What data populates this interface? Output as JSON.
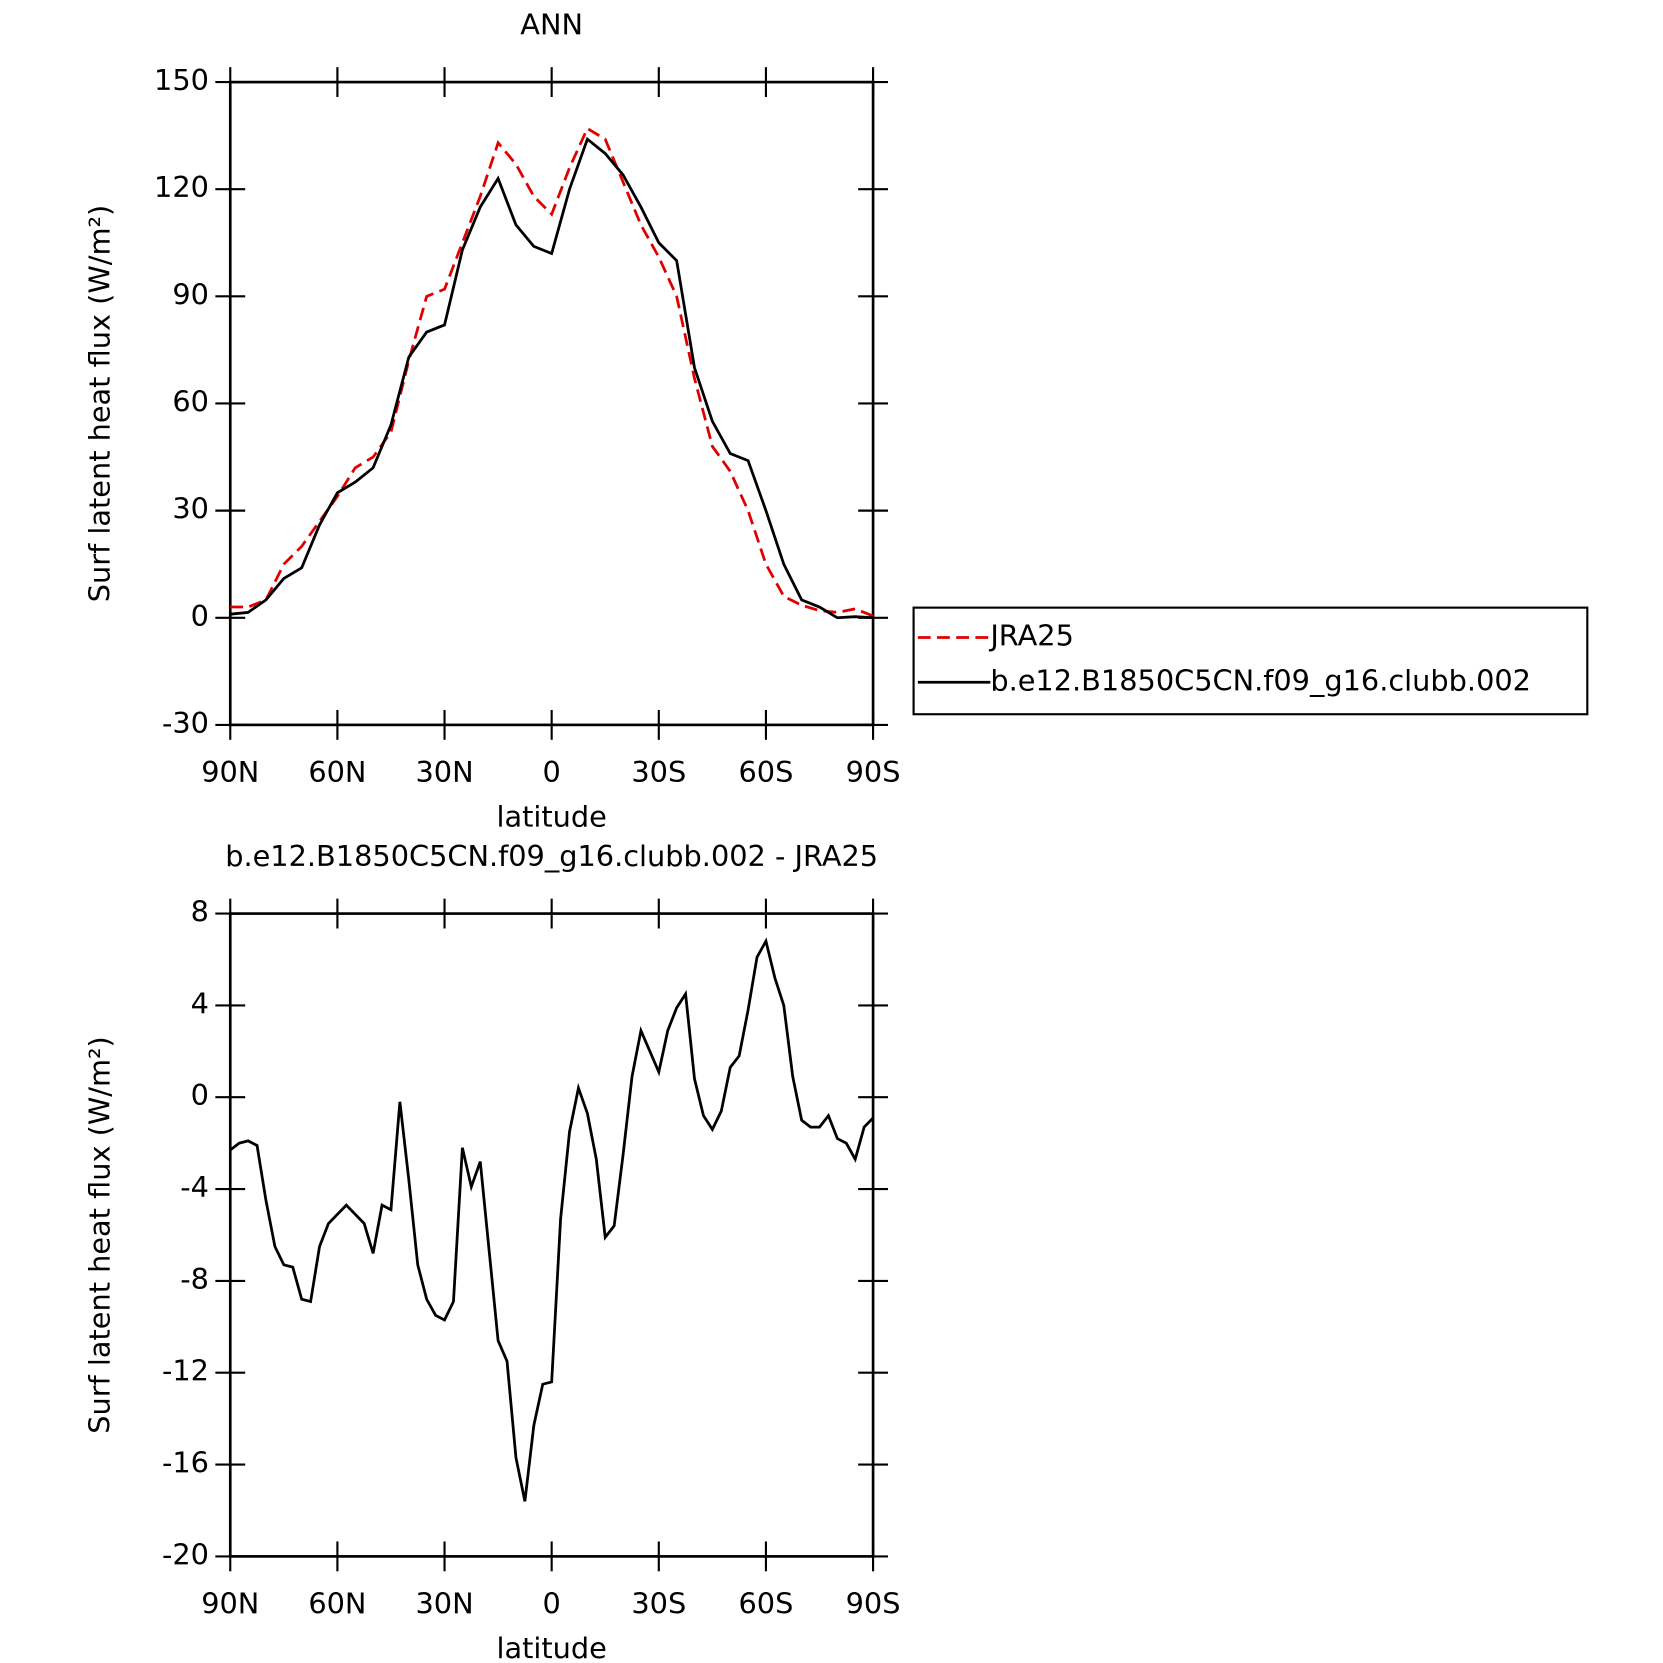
{
  "chart_data": [
    {
      "type": "line",
      "title": "ANN",
      "xlabel": "latitude",
      "ylabel": "Surf latent heat flux (W/m²)",
      "x": [
        90,
        85,
        80,
        75,
        70,
        65,
        60,
        55,
        50,
        45,
        40,
        35,
        30,
        25,
        20,
        15,
        10,
        5,
        0,
        -5,
        -10,
        -15,
        -20,
        -25,
        -30,
        -35,
        -40,
        -45,
        -50,
        -55,
        -60,
        -65,
        -70,
        -75,
        -80,
        -85,
        -90
      ],
      "series": [
        {
          "name": "JRA25",
          "color": "#e00000",
          "style": "dashed",
          "values": [
            3,
            3,
            5,
            15,
            20,
            27,
            34,
            42,
            45,
            52,
            72,
            90,
            92,
            105,
            118,
            133,
            127,
            118,
            113,
            126,
            137,
            134,
            122,
            110,
            101,
            90,
            67,
            48,
            41,
            30,
            15,
            6,
            3.5,
            2,
            1.5,
            2.5,
            0.5
          ]
        },
        {
          "name": "b.e12.B1850C5CN.f09_g16.clubb.002",
          "color": "#000000",
          "style": "solid",
          "values": [
            1,
            1.5,
            5,
            11,
            14,
            26,
            35,
            38,
            42,
            54,
            73,
            80,
            82,
            103,
            115,
            123,
            110,
            104,
            102,
            120,
            134,
            130,
            124,
            115,
            105,
            100,
            70,
            55,
            46,
            44,
            30,
            15,
            5,
            3,
            0,
            0.3,
            0
          ]
        }
      ],
      "xlim": [
        90,
        -90
      ],
      "xticks": [
        {
          "value": 90,
          "label": "90N"
        },
        {
          "value": 60,
          "label": "60N"
        },
        {
          "value": 30,
          "label": "30N"
        },
        0,
        {
          "value": -30,
          "label": "30S"
        },
        {
          "value": -60,
          "label": "60S"
        },
        {
          "value": -90,
          "label": "90S"
        }
      ],
      "ylim": [
        -30,
        150
      ],
      "yticks": [
        -30,
        0,
        30,
        60,
        90,
        120,
        150
      ],
      "legend": "right"
    },
    {
      "type": "line",
      "title": "b.e12.B1850C5CN.f09_g16.clubb.002 - JRA25",
      "xlabel": "latitude",
      "ylabel": "Surf latent heat flux (W/m²)",
      "x": [
        90,
        87.5,
        85,
        82.5,
        80,
        77.5,
        75,
        72.5,
        70,
        67.5,
        65,
        62.5,
        60,
        57.5,
        55,
        52.5,
        50,
        47.5,
        45,
        42.5,
        40,
        37.5,
        35,
        32.5,
        30,
        27.5,
        25,
        22.5,
        20,
        17.5,
        15,
        12.5,
        10,
        7.5,
        5,
        2.5,
        0,
        -2.5,
        -5,
        -7.5,
        -10,
        -12.5,
        -15,
        -17.5,
        -20,
        -22.5,
        -25,
        -27.5,
        -30,
        -32.5,
        -35,
        -37.5,
        -40,
        -42.5,
        -45,
        -47.5,
        -50,
        -52.5,
        -55,
        -57.5,
        -60,
        -62.5,
        -65,
        -67.5,
        -70,
        -72.5,
        -75,
        -77.5,
        -80,
        -82.5,
        -85,
        -87.5,
        -90
      ],
      "series": [
        {
          "color": "#000000",
          "style": "solid",
          "values": [
            -2.3,
            -2.0,
            -1.9,
            -2.1,
            -4.5,
            -6.5,
            -7.3,
            -7.4,
            -8.8,
            -8.9,
            -6.5,
            -5.5,
            -5.1,
            -4.7,
            -5.1,
            -5.5,
            -6.8,
            -4.7,
            -4.9,
            -0.2,
            -3.6,
            -7.3,
            -8.8,
            -9.5,
            -9.7,
            -8.9,
            -2.2,
            -3.9,
            -2.8,
            -6.7,
            -10.6,
            -11.5,
            -15.7,
            -17.6,
            -14.3,
            -12.5,
            -12.4,
            -5.3,
            -1.5,
            0.4,
            -0.7,
            -2.7,
            -6.1,
            -5.6,
            -2.5,
            0.9,
            2.9,
            2.0,
            1.1,
            2.9,
            3.9,
            4.5,
            0.8,
            -0.8,
            -1.4,
            -0.6,
            1.3,
            1.8,
            3.8,
            6.1,
            6.8,
            5.2,
            4.0,
            0.9,
            -1.0,
            -1.3,
            -1.3,
            -0.8,
            -1.8,
            -2.0,
            -2.7,
            -1.3,
            -0.9
          ]
        }
      ],
      "xlim": [
        90,
        -90
      ],
      "xticks": [
        {
          "value": 90,
          "label": "90N"
        },
        {
          "value": 60,
          "label": "60N"
        },
        {
          "value": 30,
          "label": "30N"
        },
        0,
        {
          "value": -30,
          "label": "30S"
        },
        {
          "value": -60,
          "label": "60S"
        },
        {
          "value": -90,
          "label": "90S"
        }
      ],
      "ylim": [
        -20,
        8
      ],
      "yticks": [
        -20,
        -16,
        -12,
        -8,
        -4,
        0,
        4,
        8
      ]
    }
  ]
}
